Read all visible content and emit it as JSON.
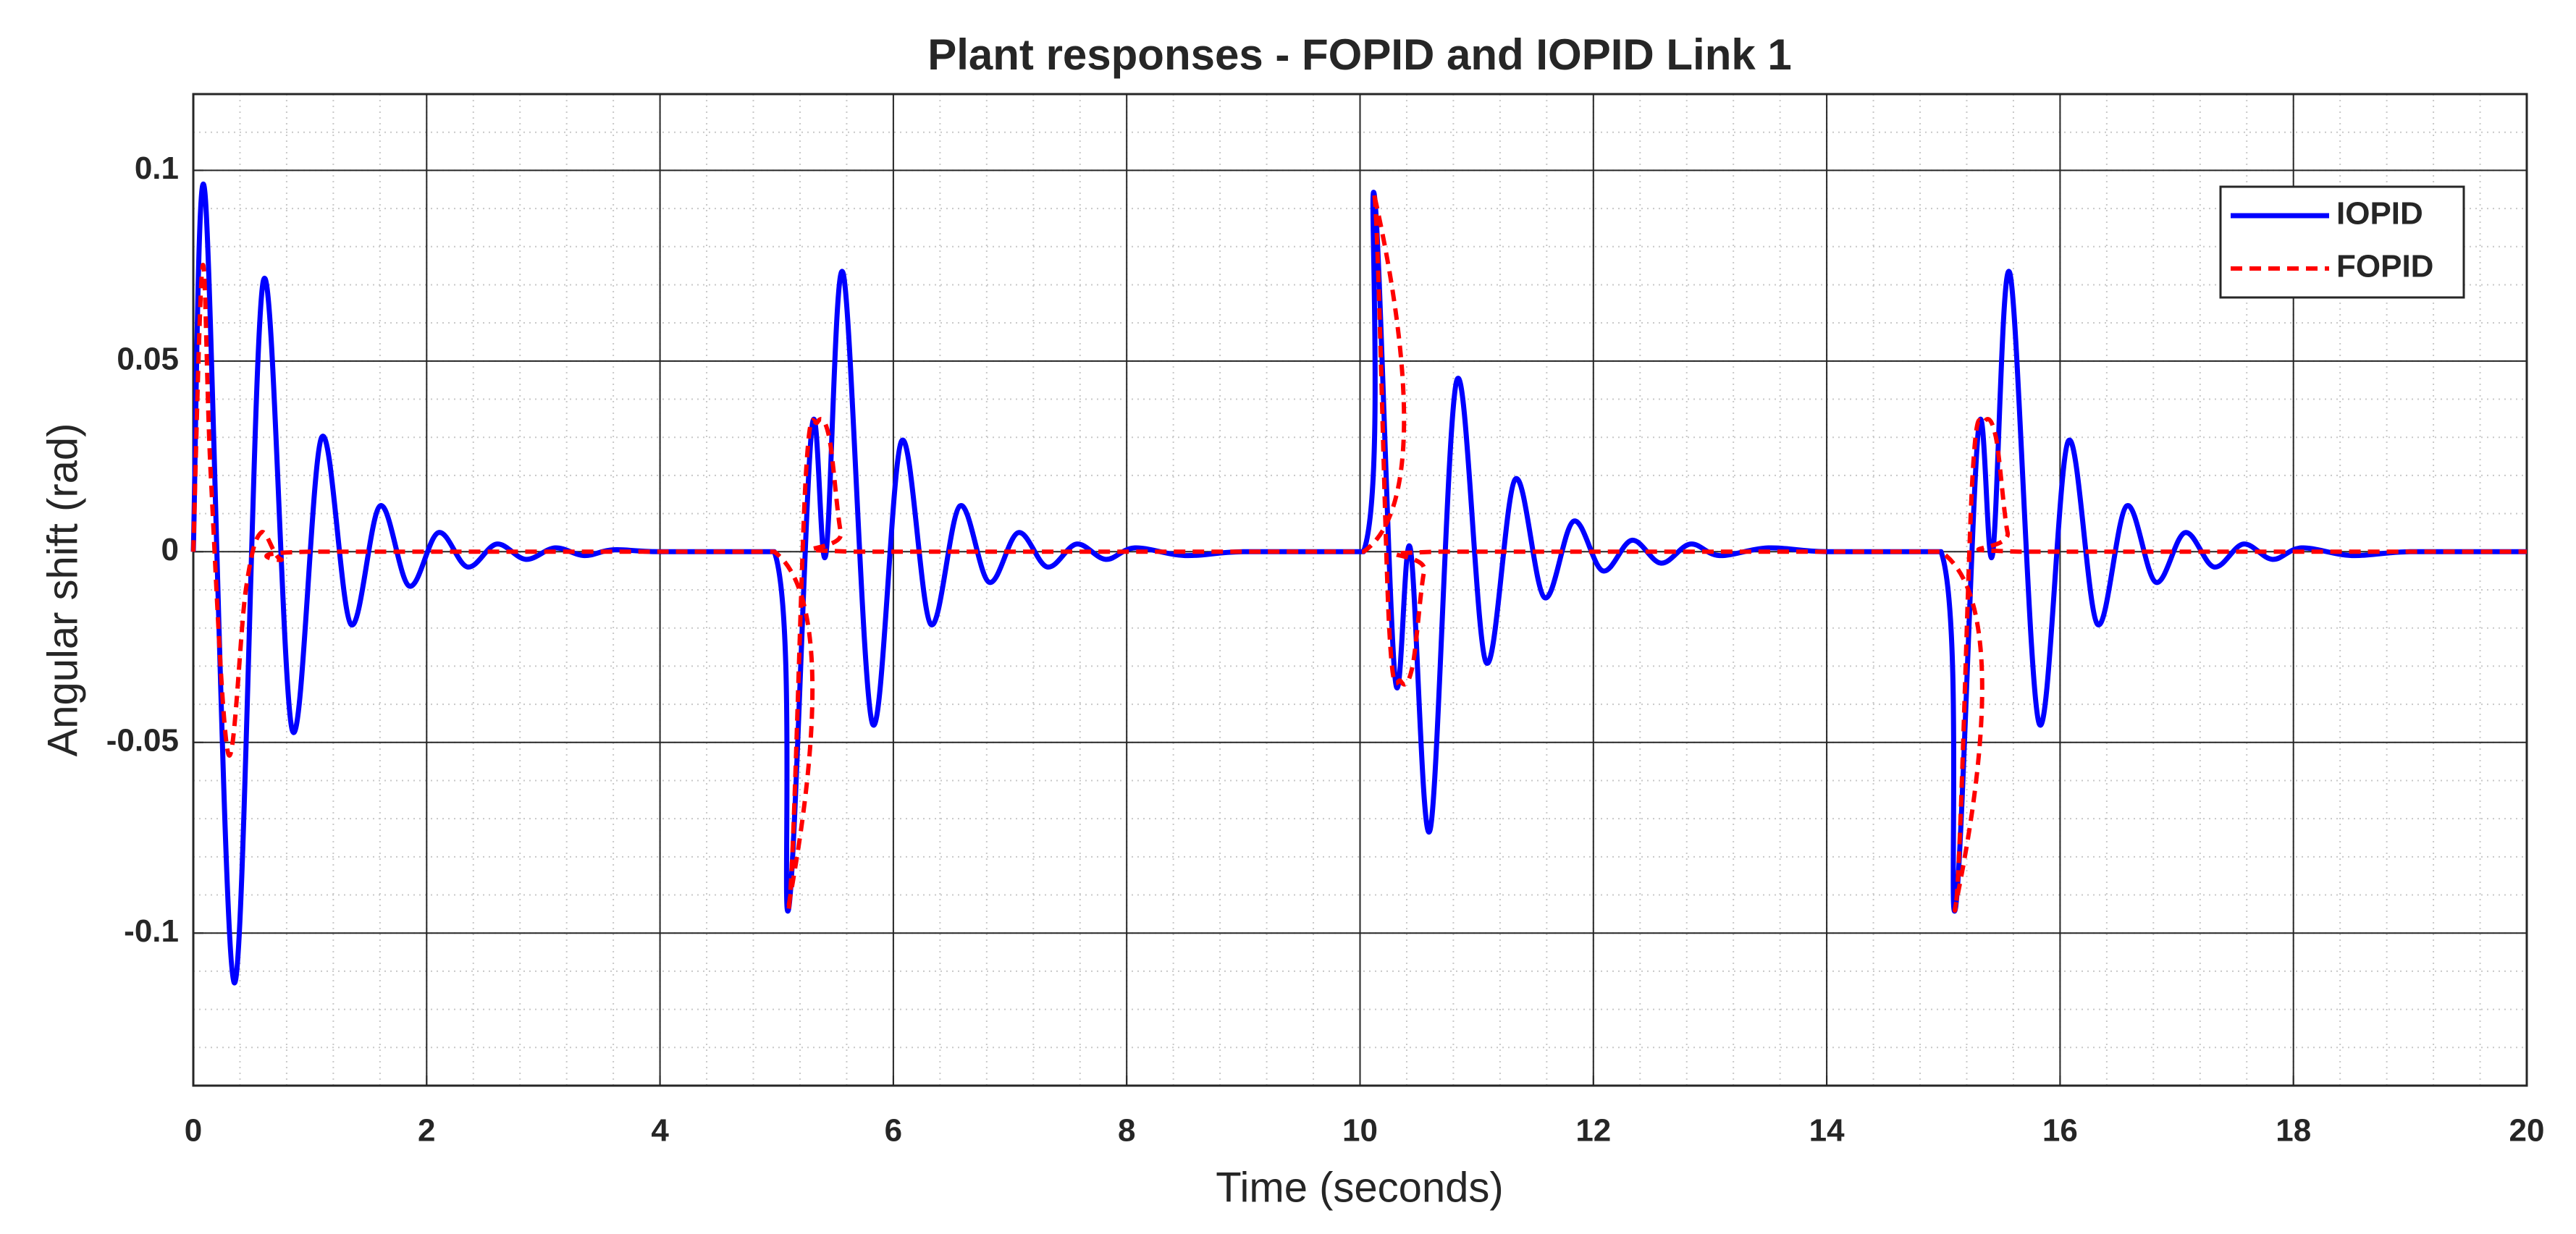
{
  "chart_data": {
    "type": "line",
    "title": "Plant responses - FOPID and IOPID Link 1",
    "x_label": "Time (seconds)",
    "y_label": "Angular shift (rad)",
    "xlim": [
      0,
      20
    ],
    "ylim": [
      -0.14,
      0.12
    ],
    "xticks": [
      0,
      2,
      4,
      6,
      8,
      10,
      12,
      14,
      16,
      18,
      20
    ],
    "yticks": [
      -0.1,
      -0.05,
      0,
      0.05,
      0.1
    ],
    "grid": true,
    "minor_grid": true,
    "legend": "upper right",
    "series": [
      {
        "name": "IOPID",
        "color": "#0000ff",
        "style": "solid",
        "x": [
          0,
          0.1,
          0.35,
          0.6,
          0.85,
          1.1,
          1.35,
          1.6,
          1.85,
          2.1,
          2.35,
          2.6,
          2.85,
          3.1,
          3.35,
          3.6,
          4,
          4.98,
          5.1,
          5.3,
          5.42,
          5.57,
          5.82,
          6.07,
          6.32,
          6.57,
          6.82,
          7.07,
          7.32,
          7.57,
          7.82,
          8.07,
          8.5,
          9,
          10.03,
          10.12,
          10.3,
          10.43,
          10.6,
          10.83,
          11.08,
          11.33,
          11.58,
          11.83,
          12.08,
          12.33,
          12.58,
          12.83,
          13.08,
          13.5,
          14,
          14.98,
          15.1,
          15.3,
          15.42,
          15.57,
          15.82,
          16.07,
          16.32,
          16.57,
          16.82,
          17.07,
          17.32,
          17.57,
          17.82,
          18.07,
          18.5,
          19,
          20
        ],
        "values": [
          0,
          0.094,
          -0.113,
          0.071,
          -0.047,
          0.03,
          -0.019,
          0.012,
          -0.009,
          0.005,
          -0.004,
          0.002,
          -0.002,
          0.001,
          -0.001,
          0.0005,
          0,
          0,
          -0.094,
          0.032,
          -0.001,
          0.073,
          -0.045,
          0.029,
          -0.019,
          0.012,
          -0.008,
          0.005,
          -0.004,
          0.002,
          -0.002,
          0.001,
          -0.001,
          0,
          0,
          0.094,
          -0.033,
          0.001,
          -0.073,
          0.045,
          -0.029,
          0.019,
          -0.012,
          0.008,
          -0.005,
          0.003,
          -0.003,
          0.002,
          -0.001,
          0.001,
          0,
          0,
          -0.094,
          0.032,
          -0.001,
          0.073,
          -0.045,
          0.029,
          -0.019,
          0.012,
          -0.008,
          0.005,
          -0.004,
          0.002,
          -0.002,
          0.001,
          -0.001,
          0,
          0
        ]
      },
      {
        "name": "FOPID",
        "color": "#ff0000",
        "style": "dashed",
        "x": [
          0,
          0.08,
          0.15,
          0.3,
          0.45,
          0.58,
          0.75,
          1,
          4.98,
          5.1,
          5.25,
          5.35,
          5.45,
          5.55,
          5.65,
          10.03,
          10.12,
          10.25,
          10.35,
          10.45,
          10.55,
          10.65,
          14.98,
          15.1,
          15.25,
          15.35,
          15.45,
          15.55,
          15.65,
          20
        ],
        "values": [
          0,
          0.075,
          0.02,
          -0.053,
          -0.01,
          0.005,
          -0.002,
          0,
          0,
          -0.094,
          0.02,
          0.034,
          0.03,
          0.005,
          0,
          0,
          0.094,
          -0.02,
          -0.034,
          -0.03,
          -0.005,
          0,
          0,
          -0.094,
          0.02,
          0.034,
          0.03,
          0.005,
          0,
          0
        ]
      }
    ]
  }
}
